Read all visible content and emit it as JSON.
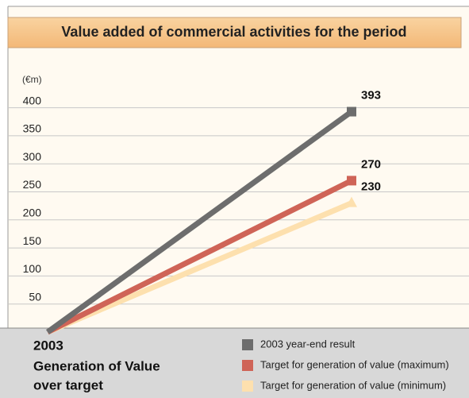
{
  "chart_data": {
    "type": "line",
    "title": "Value added of commercial activities for the period",
    "y_label": "(€m)",
    "annotations": [
      "2003",
      "Generation of Value",
      "over target"
    ],
    "categories": [
      null,
      null
    ],
    "series": [
      {
        "name": "2003 year-end result",
        "color": "#6d6d6d",
        "marker": "square",
        "values": [
          0,
          393
        ]
      },
      {
        "name": "Target for generation of value (maximum)",
        "color": "#cf6457",
        "marker": "square",
        "values": [
          0,
          270
        ]
      },
      {
        "name": "Target for generation of value (minimum)",
        "color": "#fde0ae",
        "marker": "triangle",
        "values": [
          0,
          230
        ]
      }
    ],
    "ylim": [
      0,
      420
    ],
    "yticks": [
      50,
      100,
      150,
      200,
      250,
      300,
      350,
      400
    ],
    "grid": true
  }
}
